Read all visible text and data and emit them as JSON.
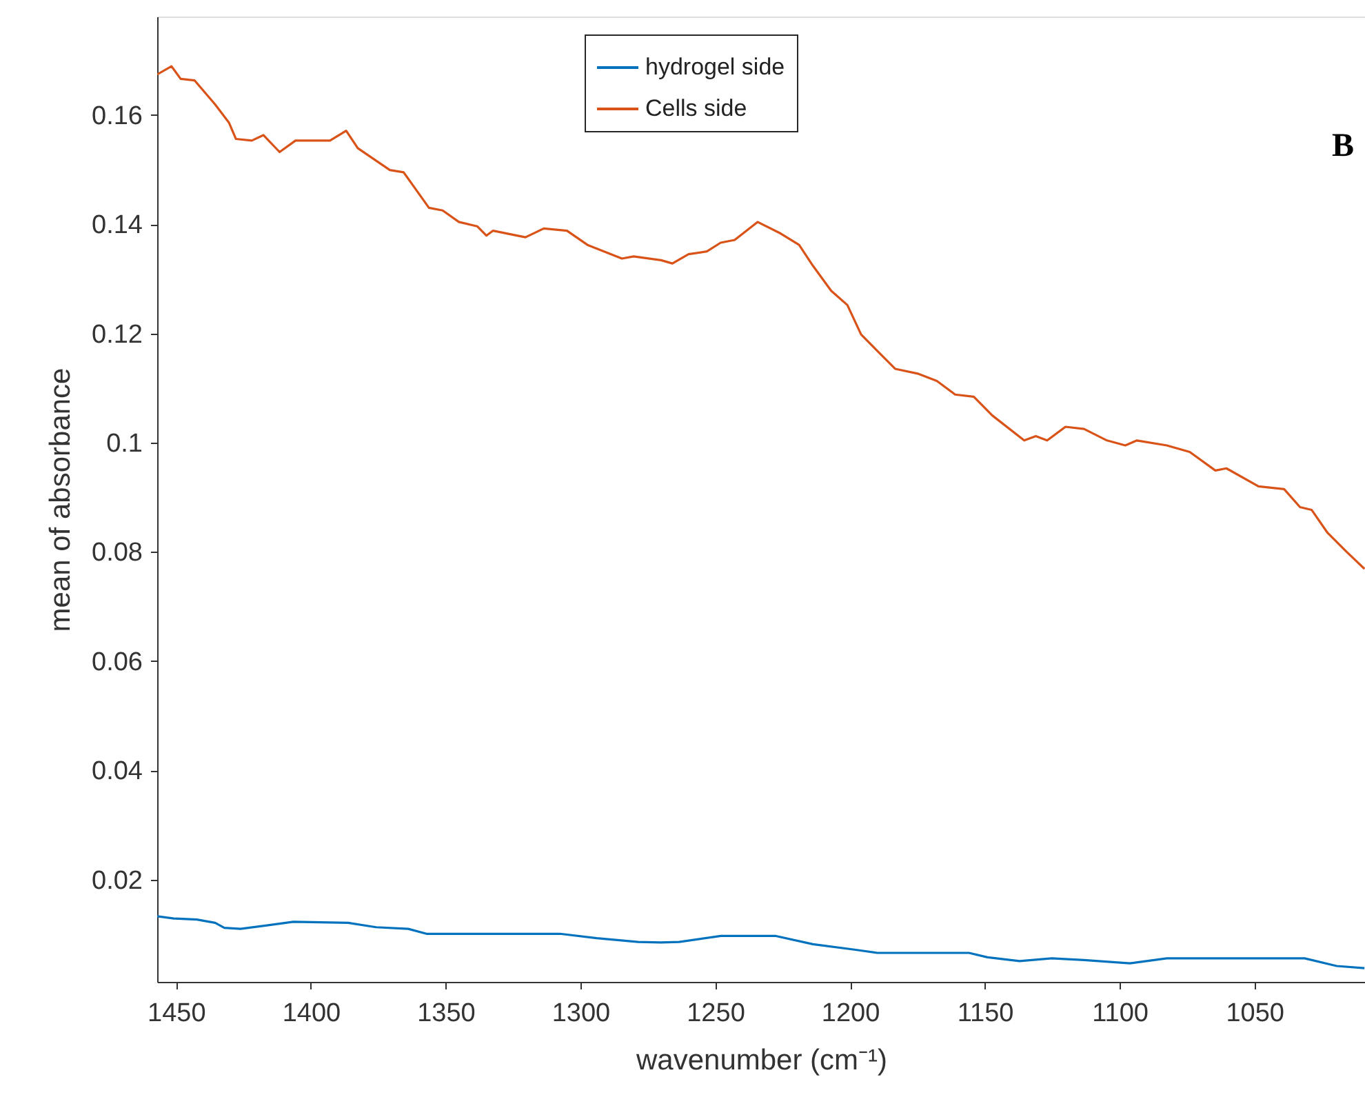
{
  "chart_data": {
    "type": "line",
    "xlabel": "wavenumber (cm⁻¹)",
    "ylabel": "mean of absorbance",
    "annotations": [
      "B"
    ],
    "xlim": [
      1457,
      1009
    ],
    "xticks": [
      1450,
      1400,
      1350,
      1300,
      1250,
      1200,
      1150,
      1100,
      1050
    ],
    "ylim": [
      0.0013,
      0.178
    ],
    "yticks": [
      0.02,
      0.04,
      0.06,
      0.08,
      0.1,
      0.12,
      0.14,
      0.16
    ],
    "grid": false,
    "legend": "top",
    "line_style": "solid",
    "marker": "none",
    "series": [
      {
        "name": "hydrogel side",
        "color": "#0072bd",
        "x": [
          1457,
          1450.8,
          1442.3,
          1435.5,
          1432.1,
          1426.1,
          1416.8,
          1406.5,
          1386.1,
          1375.8,
          1363.9,
          1357.1,
          1307.6,
          1294.0,
          1278.6,
          1270.1,
          1263.4,
          1247.9,
          1227.5,
          1213.8,
          1198.4,
          1189.9,
          1155.9,
          1149.0,
          1137.1,
          1125.2,
          1113.2,
          1096.2,
          1082.5,
          1031.4,
          1019.5,
          1009.2
        ],
        "values": [
          0.0133,
          0.0129,
          0.0127,
          0.0121,
          0.0112,
          0.011,
          0.0116,
          0.0123,
          0.0121,
          0.0113,
          0.011,
          0.0101,
          0.0101,
          0.0093,
          0.0086,
          0.0085,
          0.0086,
          0.0097,
          0.0097,
          0.0082,
          0.0072,
          0.0066,
          0.0066,
          0.0058,
          0.0051,
          0.0056,
          0.0053,
          0.0047,
          0.0056,
          0.0056,
          0.0042,
          0.0038
        ]
      },
      {
        "name": "Cells side",
        "color": "#d95319",
        "x": [
          1457,
          1451.7,
          1448.3,
          1443.1,
          1435.5,
          1430.4,
          1427.8,
          1421.9,
          1417.6,
          1411.6,
          1405.7,
          1392.9,
          1386.9,
          1382.6,
          1370.7,
          1365.6,
          1356.2,
          1351.1,
          1345.1,
          1338.3,
          1334.9,
          1332.4,
          1320.4,
          1313.6,
          1305.0,
          1297.4,
          1284.6,
          1280.3,
          1270.1,
          1265.9,
          1259.9,
          1253.1,
          1248.0,
          1242.8,
          1234.3,
          1225.8,
          1218.9,
          1213.8,
          1207.0,
          1201.0,
          1195.9,
          1189.9,
          1183.2,
          1174.6,
          1167.8,
          1161.0,
          1154.1,
          1147.3,
          1135.4,
          1131.1,
          1126.9,
          1120.1,
          1113.2,
          1104.7,
          1097.9,
          1093.6,
          1082.5,
          1074.0,
          1064.5,
          1060.4,
          1048.5,
          1039.0,
          1033.1,
          1028.8,
          1022.9,
          1016.0,
          1009.2
        ],
        "values": [
          0.1674,
          0.1689,
          0.1666,
          0.1663,
          0.1619,
          0.1586,
          0.1556,
          0.1553,
          0.1563,
          0.1532,
          0.1553,
          0.1553,
          0.1571,
          0.1539,
          0.1499,
          0.1495,
          0.143,
          0.1425,
          0.1404,
          0.1396,
          0.1379,
          0.1388,
          0.1376,
          0.1392,
          0.1388,
          0.1362,
          0.1337,
          0.1341,
          0.1334,
          0.1328,
          0.1345,
          0.135,
          0.1366,
          0.1371,
          0.1404,
          0.1383,
          0.1362,
          0.1324,
          0.1278,
          0.1252,
          0.1198,
          0.1168,
          0.1135,
          0.1126,
          0.1113,
          0.1088,
          0.1084,
          0.105,
          0.1004,
          0.1012,
          0.1004,
          0.1029,
          0.1025,
          0.1004,
          0.0995,
          0.1004,
          0.0995,
          0.0983,
          0.0949,
          0.0953,
          0.092,
          0.0915,
          0.0882,
          0.0877,
          0.0835,
          0.0801,
          0.0769
        ]
      }
    ]
  }
}
